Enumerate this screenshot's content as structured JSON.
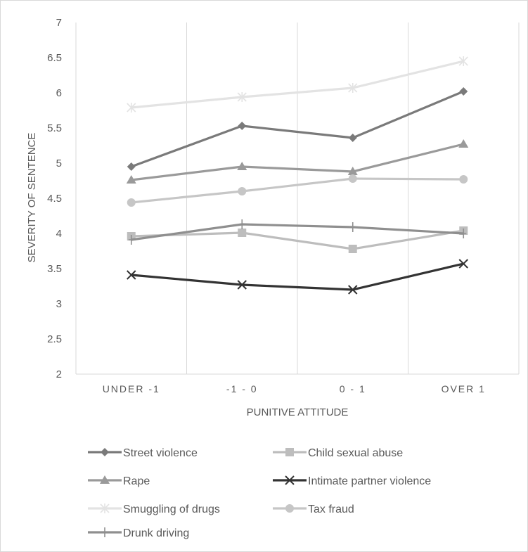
{
  "chart_data": {
    "type": "line",
    "categories": [
      "UNDER -1",
      "-1 - 0",
      "0 - 1",
      "OVER 1"
    ],
    "xlabel": "PUNITIVE ATTITUDE",
    "ylabel": "SEVERITY OF SENTENCE",
    "ylim": [
      2,
      7
    ],
    "yticks": [
      "2",
      "2.5",
      "3",
      "3.5",
      "4",
      "4.5",
      "5",
      "5.5",
      "6",
      "6.5",
      "7"
    ],
    "grid": "vertical",
    "legend_position": "bottom",
    "series": [
      {
        "name": "Street violence",
        "values": [
          4.95,
          5.53,
          5.36,
          6.02
        ],
        "color": "#7a7a7a",
        "marker": "diamond"
      },
      {
        "name": "Child sexual abuse",
        "values": [
          3.96,
          4.01,
          3.78,
          4.04
        ],
        "color": "#bdbdbd",
        "marker": "square"
      },
      {
        "name": "Rape",
        "values": [
          4.76,
          4.95,
          4.88,
          5.27
        ],
        "color": "#9a9a9a",
        "marker": "triangle"
      },
      {
        "name": "Intimate partner violence",
        "values": [
          3.41,
          3.27,
          3.2,
          3.57
        ],
        "color": "#333333",
        "marker": "x"
      },
      {
        "name": "Smuggling of drugs",
        "values": [
          5.79,
          5.94,
          6.07,
          6.45
        ],
        "color": "#e3e3e3",
        "marker": "star"
      },
      {
        "name": "Tax fraud",
        "values": [
          4.44,
          4.6,
          4.78,
          4.77
        ],
        "color": "#c6c6c6",
        "marker": "circle"
      },
      {
        "name": "Drunk driving",
        "values": [
          3.91,
          4.13,
          4.09,
          4.0
        ],
        "color": "#8f8f8f",
        "marker": "plus"
      }
    ]
  }
}
